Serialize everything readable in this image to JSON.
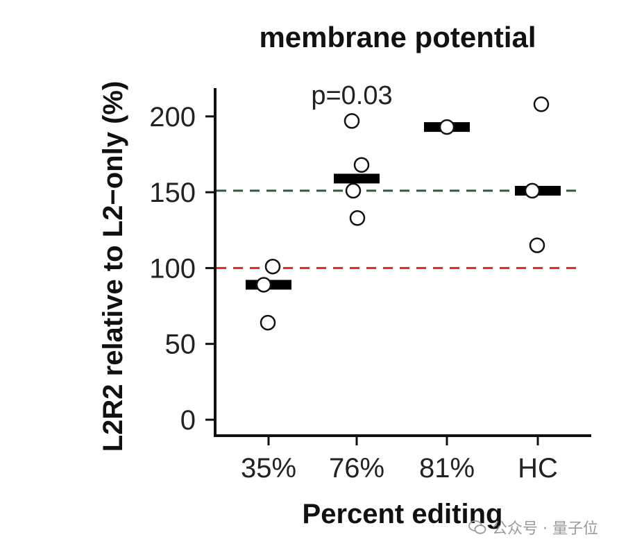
{
  "chart_data": {
    "type": "scatter",
    "title": "membrane potential",
    "xlabel": "Percent editing",
    "ylabel": "L2R2 relative to L2−only (%)",
    "categories": [
      "35%",
      "76%",
      "81%",
      "HC"
    ],
    "yticks": [
      0,
      50,
      100,
      150,
      200
    ],
    "ylim": [
      0,
      220
    ],
    "points": [
      {
        "category": "35%",
        "values": [
          101,
          89,
          64
        ]
      },
      {
        "category": "76%",
        "values": [
          197,
          168,
          151,
          133
        ]
      },
      {
        "category": "81%",
        "values": [
          193
        ]
      },
      {
        "category": "HC",
        "values": [
          208,
          151,
          115
        ]
      }
    ],
    "medians": [
      {
        "category": "35%",
        "value": 89
      },
      {
        "category": "76%",
        "value": 159
      },
      {
        "category": "81%",
        "value": 193
      },
      {
        "category": "HC",
        "value": 151
      }
    ],
    "reference_lines": [
      {
        "value": 151,
        "color": "#2f5a3e",
        "style": "dashed"
      },
      {
        "value": 100,
        "color": "#d62728",
        "style": "dashed"
      }
    ],
    "annotations": [
      {
        "text": "p=0.03",
        "category": "76%"
      }
    ],
    "grid": false,
    "legend": "none"
  },
  "watermark": {
    "text": "公众号 · 量子位",
    "icon": "wechat-icon"
  }
}
